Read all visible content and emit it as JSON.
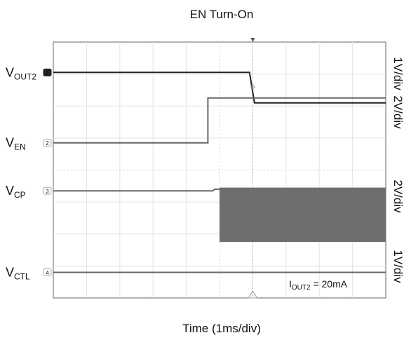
{
  "chart_data": {
    "type": "line",
    "title": "EN Turn-On",
    "xlabel": "Time (1ms/div)",
    "grid": true,
    "x_divisions": 10,
    "y_divisions": 8,
    "x_range_ms": [
      0,
      10
    ],
    "trigger_time_ms": 6,
    "series": [
      {
        "name_main": "V",
        "name_sub": "OUT2",
        "scale": "1V/div",
        "marker": "1",
        "color": "#222222",
        "stroke_width": 2.0,
        "points_div": [
          [
            0,
            7.05
          ],
          [
            5.9,
            7.05
          ],
          [
            6.05,
            6.1
          ],
          [
            10,
            6.1
          ]
        ]
      },
      {
        "name_main": "V",
        "name_sub": "EN",
        "scale": "2V/div",
        "marker": "2",
        "color": "#666666",
        "stroke_width": 2.0,
        "points_div": [
          [
            0,
            4.85
          ],
          [
            4.65,
            4.85
          ],
          [
            4.65,
            6.25
          ],
          [
            10,
            6.25
          ]
        ]
      },
      {
        "name_main": "V",
        "name_sub": "CP",
        "scale": "2V/div",
        "marker": "3",
        "color": "#666666",
        "stroke_width": 2.0,
        "points_div": [
          [
            0,
            3.35
          ],
          [
            4.8,
            3.35
          ],
          [
            4.85,
            3.4
          ],
          [
            5.0,
            3.4
          ]
        ],
        "switching_band_div": {
          "x_start": 5.0,
          "x_end": 10,
          "y_low": 1.75,
          "y_high": 3.45
        }
      },
      {
        "name_main": "V",
        "name_sub": "CTL",
        "scale": "1V/div",
        "marker": "4",
        "color": "#666666",
        "stroke_width": 2.0,
        "points_div": [
          [
            0,
            0.8
          ],
          [
            10,
            0.8
          ]
        ]
      }
    ],
    "annotation": {
      "main": "I",
      "sub": "OUT2",
      "rest": " = 20mA"
    }
  }
}
